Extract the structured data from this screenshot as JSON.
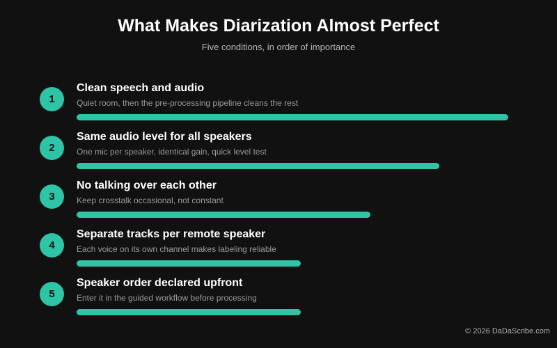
{
  "header": {
    "title": "What Makes Diarization Almost Perfect",
    "subtitle": "Five conditions, in order of importance"
  },
  "items": [
    {
      "number": "1",
      "title": "Clean speech and audio",
      "description": "Quiet room, then the pre-processing pipeline cleans the rest",
      "importance": 1.0
    },
    {
      "number": "2",
      "title": "Same audio level for all speakers",
      "description": "One mic per speaker, identical gain, quick level test",
      "importance": 0.84
    },
    {
      "number": "3",
      "title": "No talking over each other",
      "description": "Keep crosstalk occasional, not constant",
      "importance": 0.68
    },
    {
      "number": "4",
      "title": "Separate tracks per remote speaker",
      "description": "Each voice on its own channel makes labeling reliable",
      "importance": 0.52
    },
    {
      "number": "5",
      "title": "Speaker order declared upfront",
      "description": "Enter it in the guided workflow before processing",
      "importance": 0.52
    }
  ],
  "footer": {
    "copyright": "© 2026 DaDaScribe.com"
  },
  "colors": {
    "background": "#111111",
    "accent": "#2ec4a6",
    "title": "#ffffff",
    "subtitle": "#b8b8b8",
    "description": "#9a9a9a"
  }
}
